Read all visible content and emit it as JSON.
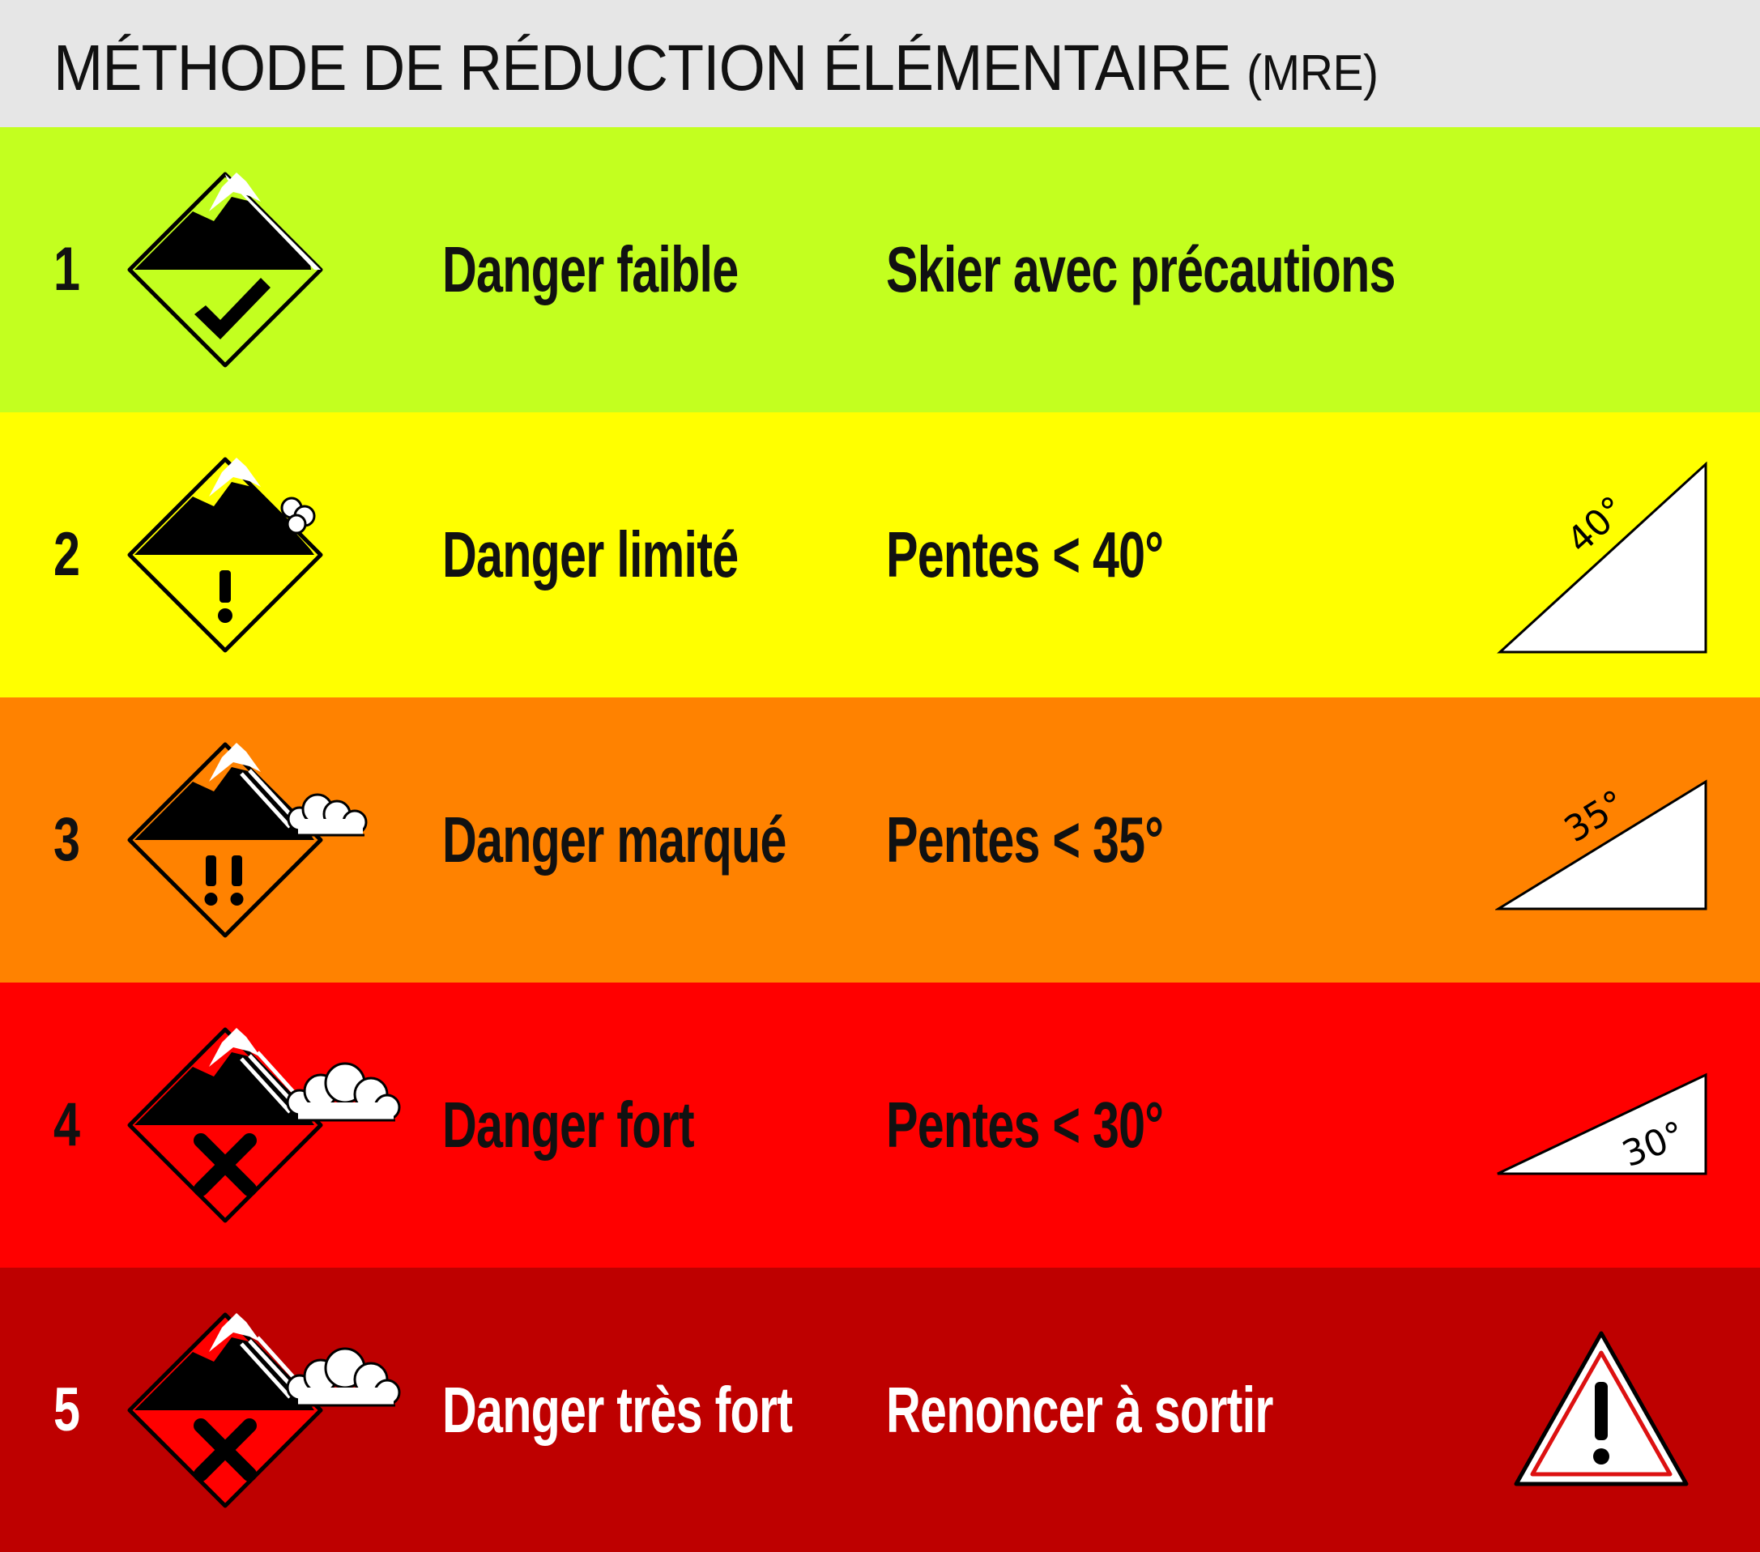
{
  "header": {
    "title": "MÉTHODE DE RÉDUCTION ÉLÉMENTAIRE",
    "abbr": "(MRE)"
  },
  "levels": [
    {
      "number": "1",
      "label": "Danger faible",
      "advice": "Skier avec précautions",
      "color": "#c3ff1f",
      "text_color": "#111111",
      "icon": "danger-level-1-check-icon",
      "slope_label": null
    },
    {
      "number": "2",
      "label": "Danger limité",
      "advice": "Pentes < 40°",
      "color": "#ffff00",
      "text_color": "#111111",
      "icon": "danger-level-2-exclamation-icon",
      "slope_label": "40°"
    },
    {
      "number": "3",
      "label": "Danger marqué",
      "advice": "Pentes < 35°",
      "color": "#ff8200",
      "text_color": "#111111",
      "icon": "danger-level-3-double-exclamation-icon",
      "slope_label": "35°"
    },
    {
      "number": "4",
      "label": "Danger fort",
      "advice": "Pentes < 30°",
      "color": "#ff0000",
      "text_color": "#111111",
      "icon": "danger-level-4-cross-icon",
      "slope_label": "30°"
    },
    {
      "number": "5",
      "label": "Danger très fort",
      "advice": "Renoncer à sortir",
      "color": "#be0000",
      "text_color": "#ffffff",
      "icon": "danger-level-5-cross-icon",
      "slope_label": null,
      "extra_icon": "warning-triangle-icon"
    }
  ]
}
